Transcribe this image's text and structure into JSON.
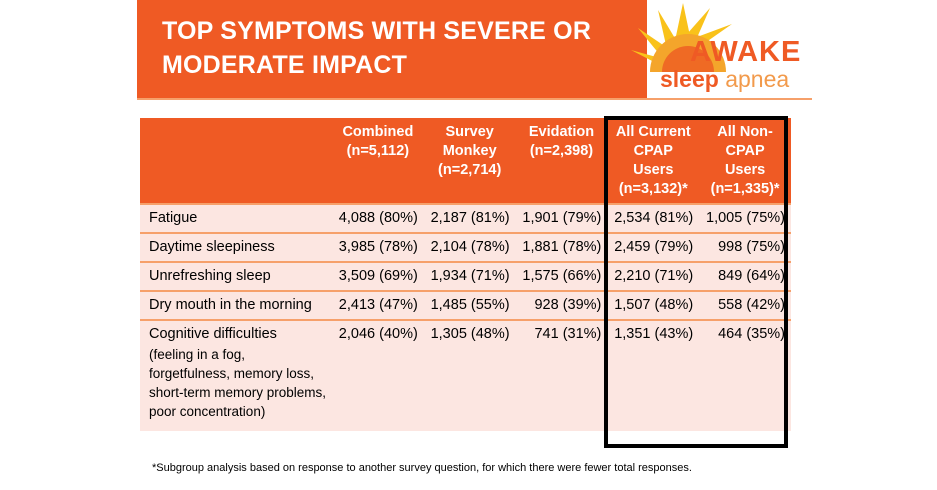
{
  "header": {
    "title_line1": "TOP SYMPTOMS WITH SEVERE OR",
    "title_line2": "MODERATE IMPACT"
  },
  "logo": {
    "word1": "AWAKE",
    "word2": "sleep",
    "word3": "apnea"
  },
  "colors": {
    "accent": "#ef5a24",
    "row_bg": "#fce6e1",
    "sun": "#f9c21a"
  },
  "chart_data": {
    "type": "table",
    "title": "TOP SYMPTOMS WITH SEVERE OR MODERATE IMPACT",
    "columns": [
      {
        "l1": "Combined",
        "l2": "(n=5,112)"
      },
      {
        "l1": "Survey",
        "l2": "Monkey",
        "l3": "(n=2,714)"
      },
      {
        "l1": "Evidation",
        "l2": "(n=2,398)"
      },
      {
        "l1": "All Current",
        "l2": "CPAP",
        "l3": "Users",
        "l4": "(n=3,132)*"
      },
      {
        "l1": "All Non-",
        "l2": "CPAP",
        "l3": "Users",
        "l4": "(n=1,335)*"
      }
    ],
    "rows": [
      {
        "label": "Fatigue",
        "values": [
          "4,088 (80%)",
          "2,187 (81%)",
          "1,901 (79%)",
          "2,534 (81%)",
          "1,005 (75%)"
        ]
      },
      {
        "label": "Daytime sleepiness",
        "values": [
          "3,985 (78%)",
          "2,104 (78%)",
          "1,881 (78%)",
          "2,459 (79%)",
          "998 (75%)"
        ]
      },
      {
        "label": "Unrefreshing sleep",
        "values": [
          "3,509 (69%)",
          "1,934 (71%)",
          "1,575 (66%)",
          "2,210 (71%)",
          "849 (64%)"
        ]
      },
      {
        "label": "Dry mouth in the morning",
        "values": [
          "2,413 (47%)",
          "1,485 (55%)",
          "928 (39%)",
          "1,507 (48%)",
          "558 (42%)"
        ]
      },
      {
        "label": "Cognitive difficulties",
        "sub": "(feeling in a fog, forgetfulness, memory loss, short-term memory problems, poor concentration)",
        "values": [
          "2,046 (40%)",
          "1,305 (48%)",
          "741 (31%)",
          "1,351 (43%)",
          "464 (35%)"
        ]
      }
    ]
  },
  "footnote": "*Subgroup analysis based on response to another survey question, for which there were fewer total responses."
}
